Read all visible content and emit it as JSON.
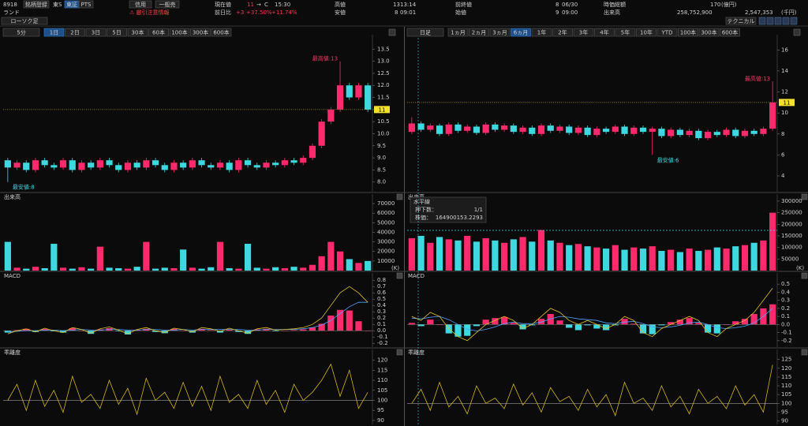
{
  "header": {
    "code": "8918",
    "register": "銘柄登録",
    "market": "東S",
    "tabs": [
      "東証",
      "PTS"
    ],
    "margin": "信用",
    "general_sell": "一般売",
    "name": "ランド",
    "warning": "⚠ 厳引注意情報",
    "chart_type": "ローソク足",
    "technical": "テクニカル",
    "current_label": "現在値",
    "current": 11,
    "arrow": "→",
    "flag": "C",
    "current_time": "15:30",
    "high_label": "高値",
    "high": 13,
    "high_time": "13:14",
    "prev_label": "前終値",
    "prev": 8,
    "prev_date": "06/30",
    "cap_label": "時価総額",
    "cap": 170,
    "cap_unit": "(億円)",
    "change_label": "前日比",
    "change": "+3",
    "change_pct": "+37.50%",
    "change_pct2": "+11.74%",
    "low_label": "安値",
    "low": 8,
    "low_time": "09:01",
    "open_label": "始値",
    "open": 9,
    "open_time": "09:00",
    "volume_label": "出来高",
    "volume": "258,752,900",
    "turnover": "2,547,353",
    "turnover_unit": "(千円)"
  },
  "left_panel": {
    "period": "5分",
    "buttons": [
      "1日",
      "2日",
      "3日",
      "5日",
      "30本",
      "60本",
      "100本",
      "300本",
      "600本"
    ],
    "active": 0,
    "up_color": "#ff2a6d",
    "down_color": "#3dd8e0",
    "price": {
      "ylim": [
        7.6,
        13.9
      ],
      "yticks": [
        {
          "value": 8,
          "label": "8.0"
        },
        8.5,
        {
          "value": 9,
          "label": "9.0"
        },
        9.5,
        {
          "value": 10,
          "label": "10.0"
        },
        10.5,
        {
          "value": 11,
          "label": "11.0"
        },
        11.5,
        {
          "value": 12,
          "label": "12.0"
        },
        12.5,
        {
          "value": 13,
          "label": "13.0"
        },
        13.5
      ],
      "open": [
        8.9,
        8.6,
        8.8,
        8.5,
        8.9,
        8.7,
        8.6,
        8.9,
        8.5,
        8.8,
        8.6,
        8.9,
        8.7,
        8.5,
        8.8,
        8.6,
        8.9,
        8.7,
        8.5,
        8.8,
        8.6,
        8.9,
        8.7,
        8.6,
        8.8,
        8.5,
        8.9,
        8.7,
        8.6,
        8.8,
        8.7,
        8.9,
        8.8,
        9.0,
        9.5,
        10.5,
        11.0,
        12.0,
        11.5,
        12.0
      ],
      "high": [
        9.0,
        8.9,
        8.9,
        9.0,
        9.0,
        8.8,
        9.0,
        9.0,
        8.9,
        8.9,
        9.0,
        9.0,
        8.8,
        8.9,
        8.9,
        9.0,
        9.0,
        8.8,
        8.9,
        8.9,
        9.0,
        9.0,
        8.8,
        8.9,
        8.9,
        9.0,
        9.0,
        8.8,
        8.9,
        8.9,
        9.0,
        9.0,
        9.1,
        9.6,
        10.6,
        11.1,
        13.0,
        12.1,
        12.1,
        12.1
      ],
      "low": [
        8.0,
        8.5,
        8.4,
        8.4,
        8.6,
        8.5,
        8.5,
        8.4,
        8.4,
        8.5,
        8.5,
        8.6,
        8.4,
        8.4,
        8.5,
        8.5,
        8.6,
        8.4,
        8.4,
        8.5,
        8.5,
        8.6,
        8.5,
        8.5,
        8.4,
        8.4,
        8.6,
        8.5,
        8.5,
        8.6,
        8.6,
        8.7,
        8.7,
        8.9,
        9.4,
        10.4,
        10.9,
        11.4,
        11.4,
        10.9
      ],
      "close": [
        8.6,
        8.8,
        8.5,
        8.9,
        8.7,
        8.6,
        8.9,
        8.5,
        8.8,
        8.6,
        8.9,
        8.7,
        8.5,
        8.8,
        8.6,
        8.9,
        8.7,
        8.5,
        8.8,
        8.6,
        8.9,
        8.7,
        8.6,
        8.8,
        8.5,
        8.9,
        8.7,
        8.6,
        8.8,
        8.7,
        8.9,
        8.8,
        9.0,
        9.5,
        10.5,
        11.0,
        12.0,
        11.5,
        12.0,
        11.0
      ],
      "current": 11,
      "high_note": "最高値:13",
      "low_note": "最安値:8"
    },
    "volume": {
      "label": "出来高",
      "unit": "(K)",
      "ylim": [
        0,
        75000
      ],
      "yticks": [
        10000,
        20000,
        30000,
        40000,
        50000,
        60000,
        70000
      ],
      "values": [
        30000,
        3000,
        2000,
        4000,
        2500,
        28000,
        3000,
        2000,
        3500,
        2000,
        25000,
        3000,
        2500,
        2000,
        4000,
        30000,
        2000,
        3000,
        2500,
        22000,
        3000,
        2000,
        3500,
        30000,
        2500,
        2000,
        28000,
        3000,
        2000,
        3500,
        2500,
        4000,
        3000,
        6000,
        15000,
        30000,
        20000,
        12000,
        8000,
        10000
      ]
    },
    "macd": {
      "label": "MACD",
      "ylim": [
        -0.26,
        0.84
      ],
      "yticks": [
        0.8,
        0.7,
        0.6,
        0.5,
        0.4,
        0.3,
        0.2,
        0.1,
        {
          "value": 0,
          "label": "0.0"
        },
        -0.1,
        -0.2
      ],
      "macd": [
        -0.05,
        0.0,
        0.03,
        -0.02,
        0.04,
        0.0,
        -0.03,
        0.05,
        0.02,
        -0.04,
        0.03,
        0.06,
        0.01,
        -0.05,
        0.02,
        0.05,
        0.0,
        -0.03,
        0.04,
        0.02,
        -0.02,
        0.05,
        0.03,
        -0.01,
        0.04,
        0.0,
        -0.04,
        0.03,
        0.05,
        0.01,
        0.02,
        0.03,
        0.05,
        0.1,
        0.2,
        0.4,
        0.6,
        0.7,
        0.6,
        0.45
      ],
      "signal": [
        -0.02,
        -0.01,
        0.0,
        0.0,
        0.01,
        0.01,
        0.0,
        0.01,
        0.02,
        0.01,
        0.01,
        0.02,
        0.02,
        0.01,
        0.01,
        0.02,
        0.02,
        0.01,
        0.01,
        0.02,
        0.01,
        0.02,
        0.02,
        0.02,
        0.02,
        0.02,
        0.01,
        0.01,
        0.02,
        0.02,
        0.02,
        0.02,
        0.03,
        0.05,
        0.09,
        0.16,
        0.27,
        0.38,
        0.45,
        0.45
      ],
      "histogram": [
        -0.03,
        0.01,
        0.03,
        -0.02,
        0.03,
        -0.01,
        -0.03,
        0.04,
        0.0,
        -0.05,
        0.02,
        0.04,
        -0.01,
        -0.06,
        0.01,
        0.03,
        -0.02,
        -0.04,
        0.03,
        0.0,
        -0.03,
        0.03,
        0.01,
        -0.03,
        0.02,
        -0.02,
        -0.05,
        0.02,
        0.03,
        -0.01,
        0.0,
        0.01,
        0.02,
        0.05,
        0.11,
        0.24,
        0.33,
        0.32,
        0.15,
        0.0
      ],
      "macd_color": "#e0c020",
      "signal_color": "#4fa3ff"
    },
    "deviation": {
      "label": "乖離度",
      "ylim": [
        88,
        123
      ],
      "yticks": [
        90,
        95,
        100,
        105,
        110,
        115,
        120
      ],
      "baseline": 100,
      "color": "#d4b417",
      "values": [
        100,
        108,
        95,
        110,
        97,
        105,
        94,
        112,
        99,
        103,
        96,
        110,
        98,
        106,
        93,
        111,
        100,
        104,
        96,
        109,
        97,
        107,
        95,
        112,
        99,
        103,
        96,
        110,
        98,
        105,
        94,
        108,
        100,
        104,
        110,
        118,
        102,
        115,
        96,
        104
      ]
    }
  },
  "right_panel": {
    "period": "日足",
    "buttons": [
      "1ヵ月",
      "2ヵ月",
      "3ヵ月",
      "6ヵ月",
      "1年",
      "2年",
      "3年",
      "4年",
      "5年",
      "10年",
      "YTD",
      "100本",
      "300本",
      "600本"
    ],
    "active": 3,
    "up_color": "#ff2a6d",
    "down_color": "#3dd8e0",
    "price": {
      "ylim": [
        2.5,
        17
      ],
      "yticks": [
        4,
        6,
        8,
        10,
        12,
        14,
        16
      ],
      "open": [
        8.2,
        9.0,
        8.4,
        8.8,
        8.0,
        8.9,
        8.3,
        8.7,
        8.1,
        8.9,
        8.4,
        8.8,
        8.2,
        8.6,
        8.0,
        8.8,
        8.3,
        8.7,
        8.1,
        8.6,
        7.9,
        8.5,
        8.2,
        8.7,
        8.0,
        8.6,
        8.2,
        8.5,
        7.8,
        8.4,
        7.9,
        8.3,
        7.6,
        8.2,
        7.9,
        8.4,
        7.8,
        8.3,
        8.0,
        8.5
      ],
      "high": [
        9.6,
        9.2,
        9.0,
        9.0,
        9.1,
        9.1,
        8.9,
        8.9,
        9.1,
        9.1,
        9.0,
        9.0,
        8.8,
        8.8,
        9.0,
        9.0,
        8.9,
        8.9,
        8.8,
        8.8,
        8.7,
        8.7,
        8.9,
        8.9,
        8.8,
        8.8,
        8.7,
        8.7,
        8.6,
        8.6,
        8.5,
        8.5,
        8.4,
        8.4,
        8.6,
        8.6,
        8.5,
        8.5,
        8.7,
        13.0
      ],
      "low": [
        8.0,
        8.2,
        8.2,
        7.8,
        7.8,
        8.1,
        8.1,
        7.9,
        7.9,
        8.2,
        8.2,
        8.0,
        8.0,
        7.8,
        7.8,
        8.1,
        8.1,
        7.9,
        7.9,
        7.7,
        7.7,
        8.0,
        8.0,
        7.8,
        7.8,
        8.0,
        6.0,
        7.6,
        7.6,
        7.7,
        7.7,
        7.4,
        7.4,
        7.7,
        7.7,
        7.6,
        7.6,
        7.8,
        7.8,
        8.3
      ],
      "close": [
        9.0,
        8.4,
        8.8,
        8.0,
        8.9,
        8.3,
        8.7,
        8.1,
        8.9,
        8.4,
        8.8,
        8.2,
        8.6,
        8.0,
        8.8,
        8.3,
        8.7,
        8.1,
        8.6,
        7.9,
        8.5,
        8.2,
        8.7,
        8.0,
        8.6,
        8.2,
        8.5,
        7.8,
        8.4,
        7.9,
        8.3,
        7.6,
        8.2,
        7.9,
        8.4,
        7.8,
        8.3,
        8.0,
        8.5,
        11.0
      ],
      "current": 11,
      "high_note": "最高値:13",
      "low_note": "最安値:6"
    },
    "volume": {
      "label": "出来高",
      "unit": "(K)",
      "ylim": [
        0,
        310000
      ],
      "yticks": [
        50000,
        100000,
        150000,
        200000,
        250000,
        300000
      ],
      "values": [
        140000,
        150000,
        120000,
        145000,
        135000,
        130000,
        150000,
        125000,
        140000,
        130000,
        120000,
        135000,
        145000,
        125000,
        175000,
        130000,
        120000,
        110000,
        115000,
        105000,
        100000,
        95000,
        110000,
        90000,
        100000,
        95000,
        105000,
        85000,
        90000,
        80000,
        95000,
        85000,
        90000,
        100000,
        95000,
        105000,
        110000,
        120000,
        130000,
        250000
      ],
      "tooltip": {
        "title": "水平線",
        "count_label": "押下数：",
        "count": "1/1",
        "price_label": "株価：",
        "price": 164900153.2293
      }
    },
    "macd": {
      "label": "MACD",
      "ylim": [
        -0.28,
        0.58
      ],
      "yticks": [
        0.5,
        0.4,
        0.3,
        0.2,
        0.1,
        {
          "value": 0,
          "label": "0.0"
        },
        -0.1,
        -0.2
      ],
      "macd": [
        0.1,
        0.05,
        0.15,
        0.1,
        -0.05,
        -0.15,
        -0.2,
        -0.1,
        0.0,
        0.05,
        0.1,
        0.05,
        -0.05,
        0.0,
        0.1,
        0.2,
        0.15,
        0.05,
        0.0,
        0.05,
        0.0,
        -0.05,
        0.0,
        0.1,
        0.05,
        -0.1,
        -0.15,
        -0.05,
        0.0,
        0.05,
        0.1,
        0.05,
        -0.1,
        -0.15,
        -0.05,
        0.0,
        0.05,
        0.15,
        0.3,
        0.45
      ],
      "signal": [
        0.08,
        0.07,
        0.09,
        0.1,
        0.06,
        0.0,
        -0.06,
        -0.08,
        -0.06,
        -0.03,
        0.01,
        0.03,
        0.01,
        0.01,
        0.03,
        0.07,
        0.1,
        0.09,
        0.07,
        0.06,
        0.05,
        0.02,
        0.01,
        0.03,
        0.04,
        0.01,
        -0.03,
        -0.04,
        -0.03,
        -0.01,
        0.02,
        0.03,
        0.0,
        -0.04,
        -0.05,
        -0.04,
        -0.02,
        0.02,
        0.1,
        0.2
      ],
      "histogram": [
        0.02,
        -0.02,
        0.06,
        0.0,
        -0.11,
        -0.15,
        -0.14,
        -0.02,
        0.06,
        0.08,
        0.09,
        0.02,
        -0.06,
        -0.01,
        0.07,
        0.13,
        0.05,
        -0.04,
        -0.07,
        -0.01,
        -0.05,
        -0.07,
        -0.01,
        0.07,
        0.01,
        -0.11,
        -0.12,
        -0.01,
        0.03,
        0.06,
        0.08,
        0.02,
        -0.1,
        -0.11,
        0.0,
        0.04,
        0.07,
        0.13,
        0.2,
        0.25
      ],
      "macd_color": "#e0c020",
      "signal_color": "#4fa3ff"
    },
    "deviation": {
      "label": "乖離度",
      "ylim": [
        88,
        128
      ],
      "yticks": [
        90,
        95,
        100,
        105,
        110,
        115,
        120,
        125
      ],
      "baseline": 100,
      "color": "#d4b417",
      "values": [
        100,
        108,
        96,
        112,
        98,
        104,
        94,
        110,
        100,
        103,
        97,
        111,
        99,
        106,
        95,
        109,
        101,
        104,
        96,
        108,
        98,
        105,
        93,
        112,
        100,
        103,
        96,
        110,
        98,
        104,
        94,
        108,
        100,
        104,
        97,
        110,
        99,
        105,
        95,
        122
      ]
    }
  }
}
